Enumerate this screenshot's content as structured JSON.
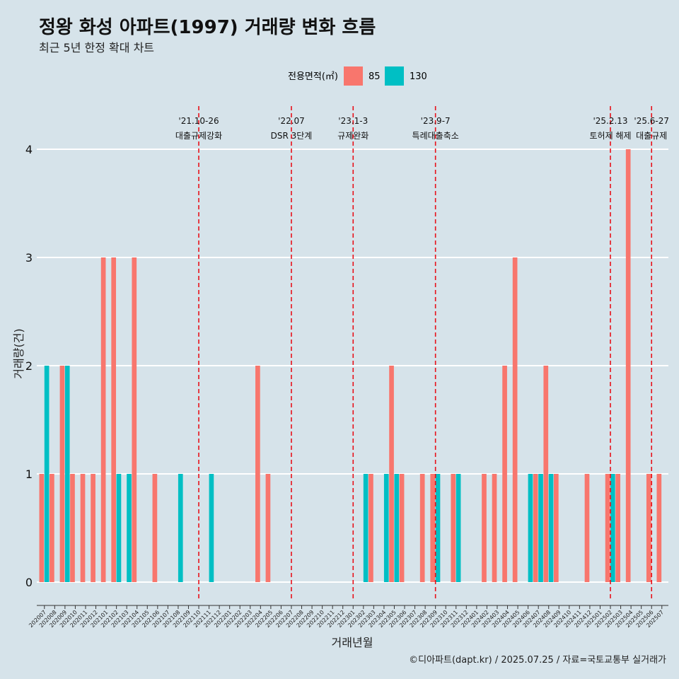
{
  "title": "정왕 화성 아파트(1997) 거래량 변화 흐름",
  "subtitle": "최근 5년 한정 확대 차트",
  "caption": "©디아파트(dapt.kr) / 2025.07.25 / 자료=국토교통부 실거래가",
  "chart_data": {
    "type": "bar",
    "xlabel": "거래년월",
    "ylabel": "거래량(건)",
    "ylim": [
      0,
      4
    ],
    "yticks": [
      0,
      1,
      2,
      3,
      4
    ],
    "grid": true,
    "legend": {
      "title": "전용면적(㎡)",
      "placement": "top",
      "entries": [
        {
          "name": "85",
          "color": "#f8766d"
        },
        {
          "name": "130",
          "color": "#00bfc4"
        }
      ]
    },
    "categories": [
      "202007",
      "202008",
      "202009",
      "202010",
      "202011",
      "202012",
      "202101",
      "202102",
      "202103",
      "202104",
      "202105",
      "202106",
      "202107",
      "202108",
      "202109",
      "202110",
      "202111",
      "202112",
      "202201",
      "202202",
      "202203",
      "202204",
      "202205",
      "202206",
      "202207",
      "202208",
      "202209",
      "202210",
      "202211",
      "202212",
      "202301",
      "202302",
      "202303",
      "202304",
      "202305",
      "202306",
      "202307",
      "202308",
      "202309",
      "202310",
      "202311",
      "202312",
      "202401",
      "202402",
      "202403",
      "202404",
      "202405",
      "202406",
      "202407",
      "202408",
      "202409",
      "202410",
      "202411",
      "202412",
      "202501",
      "202502",
      "202503",
      "202504",
      "202505",
      "202506",
      "202507"
    ],
    "series": [
      {
        "name": "85",
        "color": "#f8766d",
        "values": [
          1,
          1,
          2,
          1,
          1,
          1,
          3,
          3,
          0,
          3,
          0,
          1,
          0,
          0,
          0,
          0,
          0,
          0,
          0,
          0,
          0,
          2,
          1,
          0,
          0,
          0,
          0,
          0,
          0,
          0,
          0,
          0,
          1,
          0,
          2,
          1,
          0,
          1,
          1,
          0,
          1,
          0,
          0,
          1,
          1,
          2,
          3,
          0,
          1,
          2,
          1,
          0,
          0,
          1,
          0,
          1,
          1,
          4,
          0,
          1,
          1
        ]
      },
      {
        "name": "130",
        "color": "#00bfc4",
        "values": [
          2,
          0,
          2,
          0,
          0,
          0,
          0,
          1,
          1,
          0,
          0,
          0,
          0,
          1,
          0,
          0,
          1,
          0,
          0,
          0,
          0,
          0,
          0,
          0,
          0,
          0,
          0,
          0,
          0,
          0,
          0,
          1,
          0,
          1,
          1,
          0,
          0,
          0,
          1,
          0,
          1,
          0,
          0,
          0,
          0,
          0,
          0,
          1,
          1,
          1,
          0,
          0,
          0,
          0,
          0,
          1,
          0,
          0,
          0,
          0,
          0
        ]
      }
    ],
    "events": [
      {
        "date": "'21.10-26",
        "label": "대출규제강화",
        "x": "202110"
      },
      {
        "date": "'22.07",
        "label": "DSR 3단계",
        "x": "202207"
      },
      {
        "date": "'23.1-3",
        "label": "규제완화",
        "x": "202301"
      },
      {
        "date": "'23.9-7",
        "label": "특례대출축소",
        "x": "202309"
      },
      {
        "date": "'25.2.13",
        "label": "토허제 해제",
        "x": "202502"
      },
      {
        "date": "'25.6-27",
        "label": "대출규제",
        "x": "202506"
      }
    ]
  }
}
